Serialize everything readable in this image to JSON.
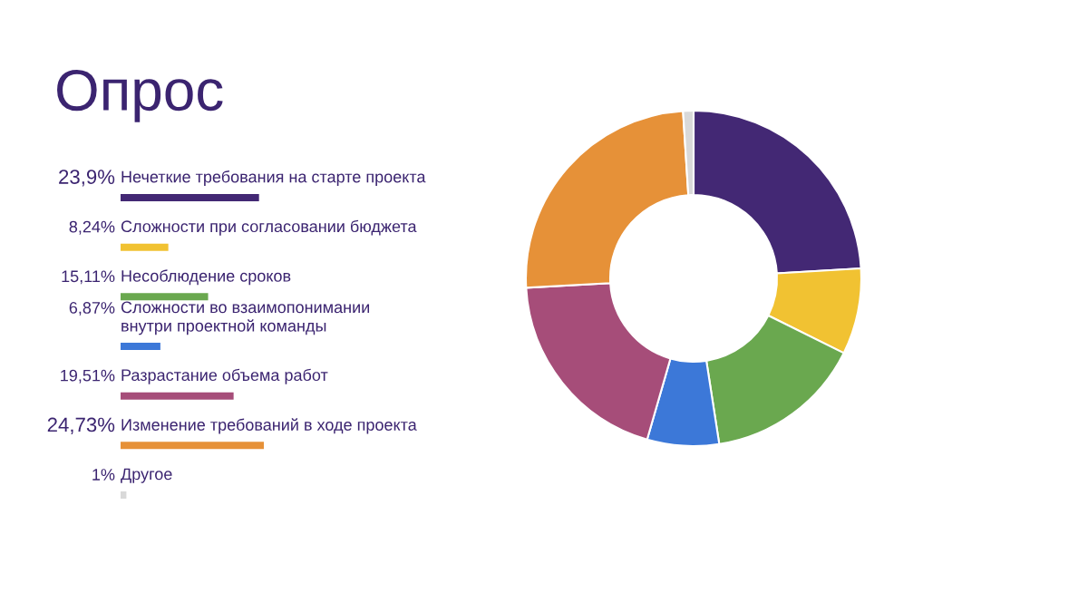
{
  "chart_data": [
    {
      "type": "bar",
      "orientation": "horizontal",
      "title": "Опрос",
      "categories": [
        "Нечеткие требования на старте проекта",
        "Сложности при согласовании бюджета",
        "Несоблюдение сроков",
        "Сложности во взаимопонимании\nвнутри проектной команды",
        "Разрастание объема работ",
        "Изменение требований в ходе проекта",
        "Другое"
      ],
      "values": [
        23.9,
        8.24,
        15.11,
        6.87,
        19.51,
        24.73,
        1
      ],
      "value_labels": [
        "23,9%",
        "8,24%",
        "15,11%",
        "6,87%",
        "19,51%",
        "24,73%",
        "1%"
      ],
      "colors": [
        "#432874",
        "#f1c232",
        "#6aa84f",
        "#3c78d8",
        "#a64d79",
        "#e69138",
        "#d9d9d9"
      ]
    },
    {
      "type": "donut",
      "categories": [
        null,
        null,
        null,
        null,
        null,
        null,
        null
      ],
      "values": [
        23.9,
        8.24,
        15.11,
        6.87,
        19.51,
        24.73,
        1
      ],
      "colors": [
        "#432874",
        "#f1c232",
        "#6aa84f",
        "#3c78d8",
        "#a64d79",
        "#e69138",
        "#d9d9d9"
      ]
    }
  ]
}
